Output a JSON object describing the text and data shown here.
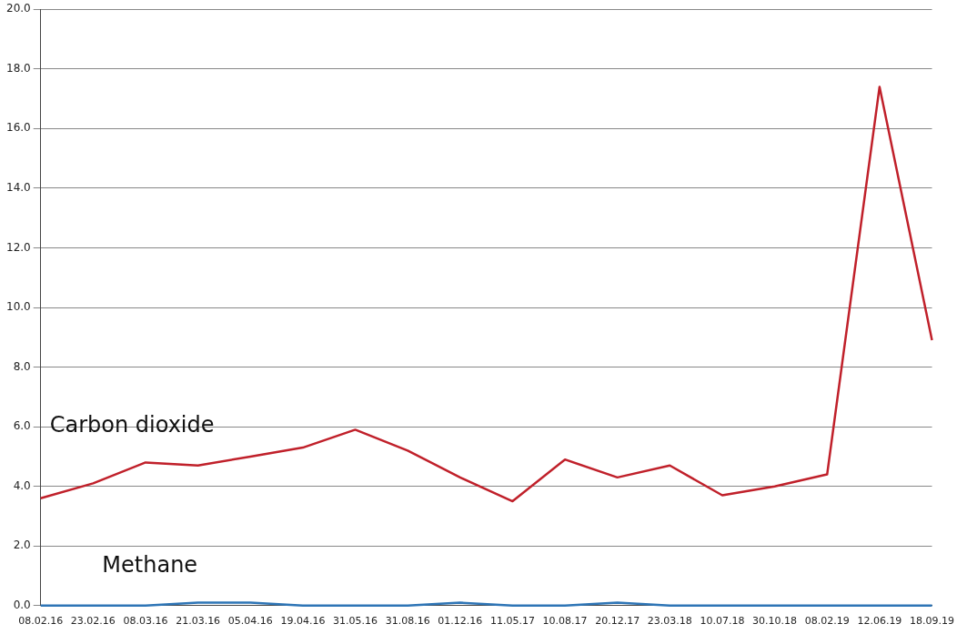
{
  "chart_data": {
    "type": "line",
    "categories": [
      "08.02.16",
      "23.02.16",
      "08.03.16",
      "21.03.16",
      "05.04.16",
      "19.04.16",
      "31.05.16",
      "31.08.16",
      "01.12.16",
      "11.05.17",
      "10.08.17",
      "20.12.17",
      "23.03.18",
      "10.07.18",
      "30.10.18",
      "08.02.19",
      "12.06.19",
      "18.09.19"
    ],
    "series": [
      {
        "name": "Carbon dioxide",
        "color": "#c0202a",
        "values": [
          3.6,
          4.1,
          4.8,
          4.7,
          5.0,
          5.3,
          5.9,
          5.2,
          4.3,
          3.5,
          4.9,
          4.3,
          4.7,
          3.7,
          4.0,
          4.4,
          17.4,
          8.9
        ]
      },
      {
        "name": "Methane",
        "color": "#2e75b6",
        "values": [
          0,
          0,
          0,
          0.1,
          0.1,
          0,
          0,
          0,
          0.1,
          0,
          0,
          0.1,
          0,
          0,
          0,
          0,
          0,
          0
        ]
      }
    ],
    "ylim": [
      0,
      20
    ],
    "yticks": [
      {
        "value": 0,
        "label": "0.0"
      },
      {
        "value": 2,
        "label": "2.0"
      },
      {
        "value": 4,
        "label": "4.0"
      },
      {
        "value": 6,
        "label": "6.0"
      },
      {
        "value": 8,
        "label": "8.0"
      },
      {
        "value": 10,
        "label": "10.0"
      },
      {
        "value": 12,
        "label": "12.0"
      },
      {
        "value": 14,
        "label": "14.0"
      },
      {
        "value": 16,
        "label": "16.0"
      },
      {
        "value": 18,
        "label": "18.0"
      },
      {
        "value": 20,
        "label": "20.0"
      }
    ],
    "grid": "y",
    "legend": false,
    "marker": "none",
    "line_style": "solid"
  }
}
